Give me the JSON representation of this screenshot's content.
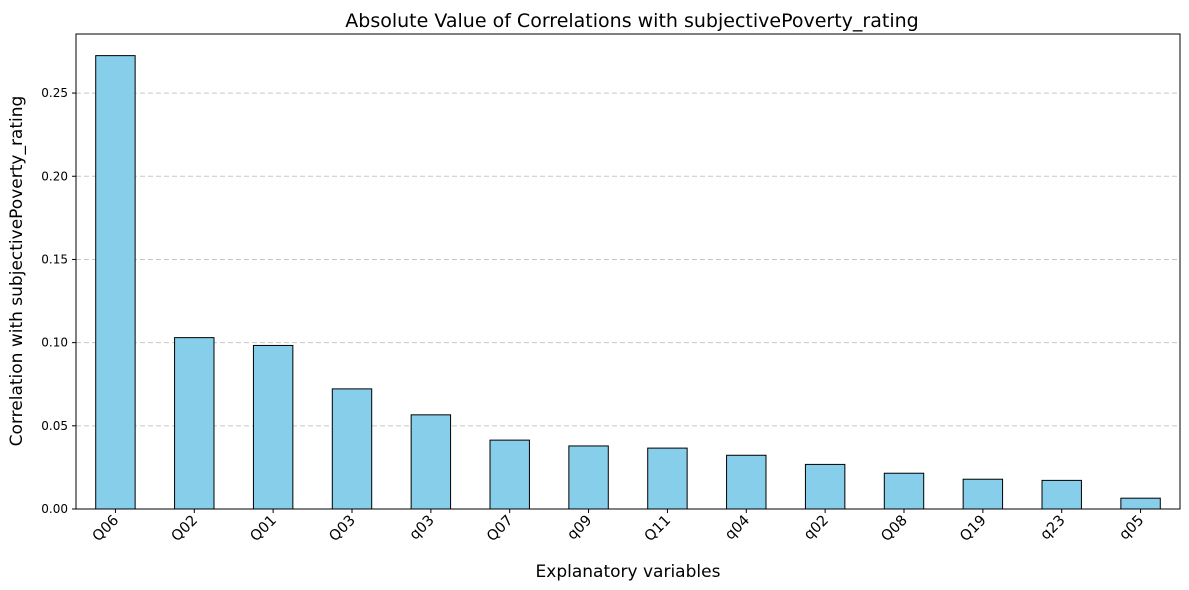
{
  "chart_data": {
    "type": "bar",
    "title": "Absolute Value of Correlations with subjectivePoverty_rating",
    "xlabel": "Explanatory variables",
    "ylabel": "Correlation with subjectivePoverty_rating",
    "categories": [
      "Q06",
      "Q02",
      "Q01",
      "Q03",
      "q03",
      "Q07",
      "q09",
      "Q11",
      "q04",
      "q02",
      "Q08",
      "Q19",
      "q23",
      "q05"
    ],
    "values": [
      0.2725,
      0.103,
      0.0983,
      0.0722,
      0.0566,
      0.0414,
      0.0379,
      0.0366,
      0.0323,
      0.0268,
      0.0215,
      0.0179,
      0.0172,
      0.0065
    ],
    "ylim": [
      0,
      0.2855
    ],
    "yticks": [
      0.0,
      0.05,
      0.1,
      0.15,
      0.2,
      0.25
    ],
    "ytick_labels": [
      "0.00",
      "0.05",
      "0.10",
      "0.15",
      "0.20",
      "0.25"
    ],
    "grid": "y, dashed",
    "colors": {
      "bar_fill": "#87ceeb",
      "bar_edge": "#000000",
      "grid": "#c8c8c8"
    }
  }
}
